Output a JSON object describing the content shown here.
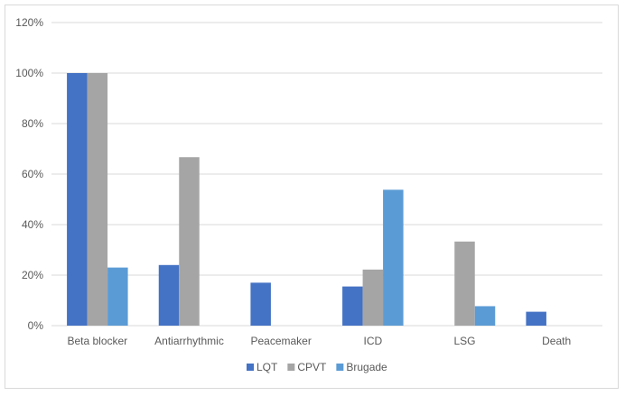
{
  "chart_data": {
    "type": "bar",
    "title": "",
    "xlabel": "",
    "ylabel": "",
    "categories": [
      "Beta blocker",
      "Antiarrhythmic",
      "Peacemaker",
      "ICD",
      "LSG",
      "Death"
    ],
    "series": [
      {
        "name": "LQT",
        "color": "#4472c4",
        "values": [
          100,
          24,
          17,
          15.5,
          0,
          5.5
        ]
      },
      {
        "name": "CPVT",
        "color": "#a5a5a5",
        "values": [
          100,
          66.7,
          0,
          22.2,
          33.3,
          0
        ]
      },
      {
        "name": "Brugade",
        "color": "#5b9bd5",
        "values": [
          23,
          0,
          0,
          53.8,
          7.7,
          0
        ]
      }
    ],
    "ylim": [
      0,
      120
    ],
    "yticks": [
      0,
      20,
      40,
      60,
      80,
      100,
      120
    ],
    "ytick_labels": [
      "0%",
      "20%",
      "40%",
      "60%",
      "80%",
      "100%",
      "120%"
    ],
    "grid": true,
    "legend_position": "bottom"
  }
}
